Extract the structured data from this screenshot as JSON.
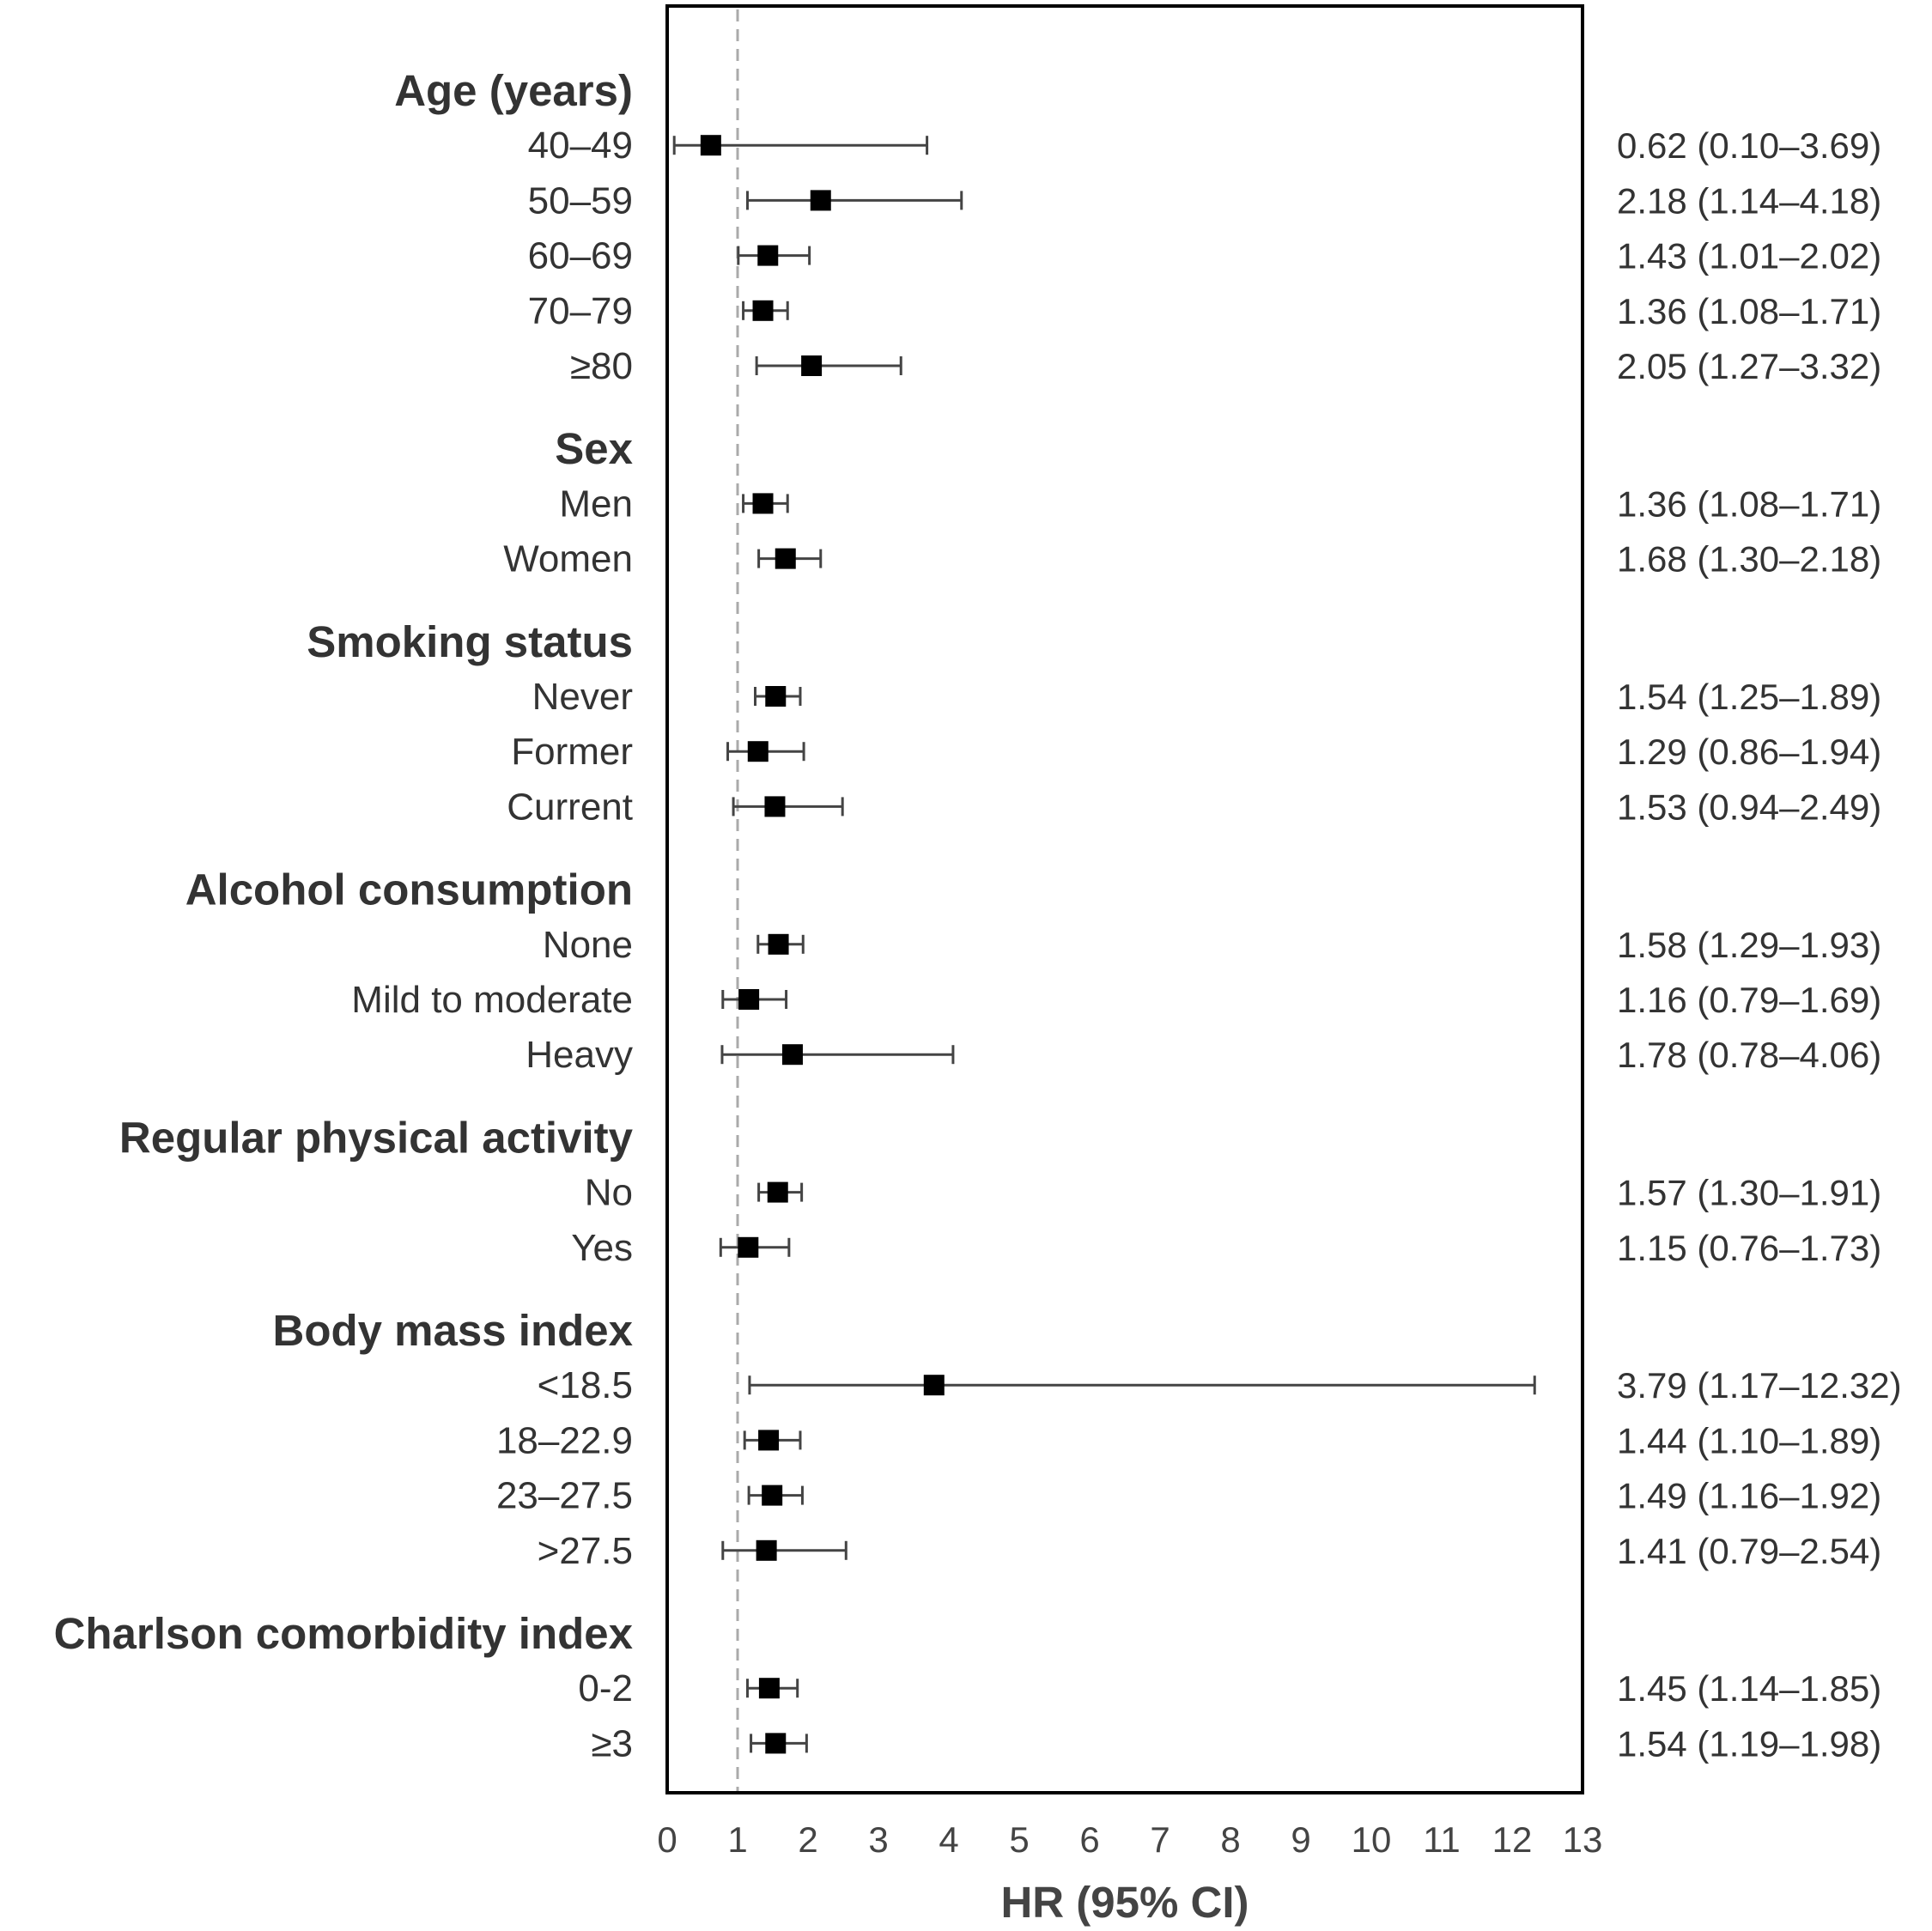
{
  "chart_data": {
    "type": "forest",
    "title": "",
    "xlabel": "HR (95% CI)",
    "ylabel": "",
    "xlim": [
      0,
      13
    ],
    "xticks": [
      "0",
      "1",
      "2",
      "3",
      "4",
      "5",
      "6",
      "7",
      "8",
      "9",
      "10",
      "11",
      "12",
      "13"
    ],
    "reference_line": 1,
    "grid": false,
    "legend": "none",
    "colors": {
      "marker": "#000000",
      "whisker": "#444444",
      "reference": "#aaaaaa",
      "frame": "#000000",
      "text": "#333333"
    },
    "groups": [
      {
        "label": "Age (years)",
        "rows": [
          {
            "label": "40–49",
            "hr": 0.62,
            "lo": 0.1,
            "hi": 3.69,
            "text": "0.62 (0.10–3.69)"
          },
          {
            "label": "50–59",
            "hr": 2.18,
            "lo": 1.14,
            "hi": 4.18,
            "text": "2.18 (1.14–4.18)"
          },
          {
            "label": "60–69",
            "hr": 1.43,
            "lo": 1.01,
            "hi": 2.02,
            "text": "1.43 (1.01–2.02)"
          },
          {
            "label": "70–79",
            "hr": 1.36,
            "lo": 1.08,
            "hi": 1.71,
            "text": "1.36 (1.08–1.71)"
          },
          {
            "label": "≥80",
            "hr": 2.05,
            "lo": 1.27,
            "hi": 3.32,
            "text": "2.05 (1.27–3.32)"
          }
        ]
      },
      {
        "label": "Sex",
        "rows": [
          {
            "label": "Men",
            "hr": 1.36,
            "lo": 1.08,
            "hi": 1.71,
            "text": "1.36 (1.08–1.71)"
          },
          {
            "label": "Women",
            "hr": 1.68,
            "lo": 1.3,
            "hi": 2.18,
            "text": "1.68 (1.30–2.18)"
          }
        ]
      },
      {
        "label": "Smoking status",
        "rows": [
          {
            "label": "Never",
            "hr": 1.54,
            "lo": 1.25,
            "hi": 1.89,
            "text": "1.54 (1.25–1.89)"
          },
          {
            "label": "Former",
            "hr": 1.29,
            "lo": 0.86,
            "hi": 1.94,
            "text": "1.29 (0.86–1.94)"
          },
          {
            "label": "Current",
            "hr": 1.53,
            "lo": 0.94,
            "hi": 2.49,
            "text": "1.53 (0.94–2.49)"
          }
        ]
      },
      {
        "label": "Alcohol consumption",
        "rows": [
          {
            "label": "None",
            "hr": 1.58,
            "lo": 1.29,
            "hi": 1.93,
            "text": "1.58 (1.29–1.93)"
          },
          {
            "label": "Mild to moderate",
            "hr": 1.16,
            "lo": 0.79,
            "hi": 1.69,
            "text": "1.16 (0.79–1.69)"
          },
          {
            "label": "Heavy",
            "hr": 1.78,
            "lo": 0.78,
            "hi": 4.06,
            "text": "1.78 (0.78–4.06)"
          }
        ]
      },
      {
        "label": "Regular physical activity",
        "rows": [
          {
            "label": "No",
            "hr": 1.57,
            "lo": 1.3,
            "hi": 1.91,
            "text": "1.57 (1.30–1.91)"
          },
          {
            "label": "Yes",
            "hr": 1.15,
            "lo": 0.76,
            "hi": 1.73,
            "text": "1.15 (0.76–1.73)"
          }
        ]
      },
      {
        "label": "Body mass index",
        "rows": [
          {
            "label": "<18.5",
            "hr": 3.79,
            "lo": 1.17,
            "hi": 12.32,
            "text": "3.79 (1.17–12.32)"
          },
          {
            "label": "18–22.9",
            "hr": 1.44,
            "lo": 1.1,
            "hi": 1.89,
            "text": "1.44 (1.10–1.89)"
          },
          {
            "label": "23–27.5",
            "hr": 1.49,
            "lo": 1.16,
            "hi": 1.92,
            "text": "1.49 (1.16–1.92)"
          },
          {
            "label": ">27.5",
            "hr": 1.41,
            "lo": 0.79,
            "hi": 2.54,
            "text": "1.41 (0.79–2.54)"
          }
        ]
      },
      {
        "label": "Charlson comorbidity index",
        "rows": [
          {
            "label": "0-2",
            "hr": 1.45,
            "lo": 1.14,
            "hi": 1.85,
            "text": "1.45 (1.14–1.85)"
          },
          {
            "label": "≥3",
            "hr": 1.54,
            "lo": 1.19,
            "hi": 1.98,
            "text": "1.54 (1.19–1.98)"
          }
        ]
      }
    ]
  }
}
